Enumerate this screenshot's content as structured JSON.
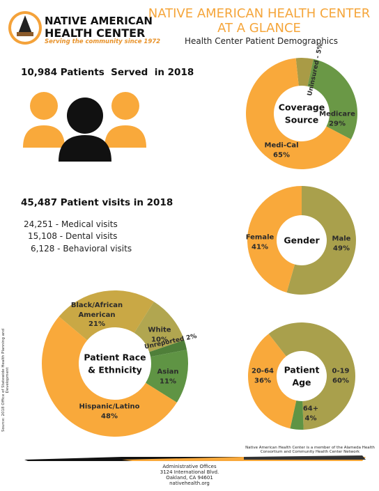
{
  "logo": {
    "line1": "NATIVE AMERICAN",
    "line2": "HEALTH CENTER",
    "tagline": "Serving the community since 1972"
  },
  "header": {
    "title": [
      "NATIVE AMERICAN HEALTH CENTER",
      "AT A GLANCE"
    ],
    "subtitle": "Health Center Patient Demographics"
  },
  "patients": "10,984 Patients  Served  in 2018",
  "visits": {
    "heading": "45,487 Patient visits in 2018",
    "items": [
      "24,251 - Medical visits",
      "15,108 - Dental visits",
      "6,128 - Behavioral visits"
    ]
  },
  "source": "Source: 2018 Office of Statewide Health Planning and Development",
  "footer": {
    "note": "Native American Health Center is a member of the Alameda Health Consortium and Community Health Center Network",
    "address": [
      "Administrative Offices",
      "3124 International Blvd.",
      "Oakland, CA 94601",
      "nativehealth.org"
    ]
  },
  "chart_data": [
    {
      "type": "pie",
      "title": [
        "Coverage",
        "Source"
      ],
      "categories": [
        null,
        "Medicare",
        "Medi-Cal"
      ],
      "values": [
        5,
        29,
        65
      ],
      "value_labels": [
        "Uninsured - 5%",
        "29%",
        "65%"
      ],
      "colors": [
        "#a99b46",
        "#6a9846",
        "#f9a93b"
      ]
    },
    {
      "type": "pie",
      "title": [
        "Gender"
      ],
      "categories": [
        "Male",
        "Female"
      ],
      "values": [
        49,
        41
      ],
      "value_labels": [
        "49%",
        "41%"
      ],
      "colors": [
        "#a9a04c",
        "#f9a93b"
      ]
    },
    {
      "type": "pie",
      "title": [
        "Patient Race",
        "& Ethnicity"
      ],
      "categories": [
        "Black/African American",
        "White",
        null,
        "Asian",
        "Hispanic/Latino"
      ],
      "values": [
        21,
        10,
        2,
        11,
        48
      ],
      "value_labels": [
        "21%",
        "10%",
        "Unreported 2%",
        "11%",
        "48%"
      ],
      "colors": [
        "#c9a845",
        "#b1a650",
        "#4f7f39",
        "#5f9444",
        "#f9a93b"
      ]
    },
    {
      "type": "pie",
      "title": [
        "Patient",
        "Age"
      ],
      "categories": [
        "0-19",
        "64+",
        "20-64"
      ],
      "values": [
        60,
        4,
        36
      ],
      "value_labels": [
        "60%",
        "4%",
        "36%"
      ],
      "colors": [
        "#a9a04c",
        "#5f9444",
        "#f9a93b"
      ]
    }
  ]
}
